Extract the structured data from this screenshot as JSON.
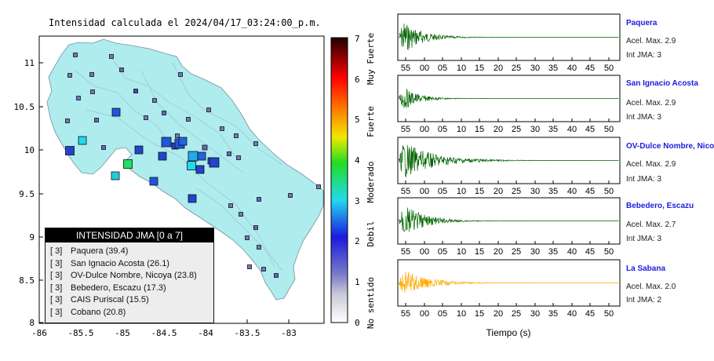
{
  "map": {
    "title": "Intensidad calculada el 2024/04/17_03:24:00_p.m.",
    "lon_ticks": [
      "-86",
      "-85.5",
      "-85",
      "-84.5",
      "-84",
      "-83.5",
      "-83"
    ],
    "lat_ticks": [
      "8",
      "8.5",
      "9",
      "9.5",
      "10",
      "10.5",
      "11"
    ],
    "colors": {
      "land": "#aeecee",
      "frame": "#000000"
    }
  },
  "legend": {
    "title": "INTENSIDAD JMA [0 a 7]",
    "items": [
      {
        "level": "[ 3]",
        "label": "Paquera (39.4)"
      },
      {
        "level": "[ 3]",
        "label": "San Ignacio Acosta (26.1)"
      },
      {
        "level": "[ 3]",
        "label": "OV-Dulce Nombre, Nicoya (23.8)"
      },
      {
        "level": "[ 3]",
        "label": "Bebedero, Escazu (17.3)"
      },
      {
        "level": "[ 3]",
        "label": "CAIS Puriscal (15.5)"
      },
      {
        "level": "[ 3]",
        "label": "Cobano (20.8)"
      }
    ]
  },
  "colorbar": {
    "ticks": [
      "0",
      "1",
      "2",
      "3",
      "4",
      "5",
      "6",
      "7"
    ],
    "categories": [
      "No sentido",
      "Debil",
      "Moderado",
      "Fuerte",
      "Muy Fuerte"
    ],
    "colors": [
      "#ffffff",
      "#9999cc",
      "#2222dd",
      "#22d9ee",
      "#22dd22",
      "#f0e800",
      "#ff7a00",
      "#ff0000",
      "#200000"
    ]
  },
  "chart_data": {
    "type": "line",
    "x_ticks": [
      "55",
      "00",
      "05",
      "10",
      "15",
      "20",
      "25",
      "30",
      "35",
      "40",
      "45",
      "50"
    ],
    "xlabel": "Tiempo (s)",
    "stations": [
      {
        "name": "Paquera",
        "acel": "Acel. Max. 2.9",
        "int": "Int JMA: 3",
        "color": "#006400",
        "amp": 1.0,
        "decay": 11
      },
      {
        "name": "San Ignacio Acosta",
        "acel": "Acel. Max. 2.9",
        "int": "Int JMA: 3",
        "color": "#006400",
        "amp": 0.75,
        "decay": 9
      },
      {
        "name": "OV-Dulce Nombre, Nicoya",
        "acel": "Acel. Max. 2.9",
        "int": "Int JMA: 3",
        "color": "#006400",
        "amp": 1.0,
        "decay": 18
      },
      {
        "name": "Bebedero, Escazu",
        "acel": "Acel. Max. 2.7",
        "int": "Int JMA: 3",
        "color": "#006400",
        "amp": 1.0,
        "decay": 12
      },
      {
        "name": "La Sabana",
        "acel": "Acel. Max. 2.0",
        "int": "Int JMA: 2",
        "color": "#ffaa00",
        "amp": 0.8,
        "decay": 14
      }
    ]
  }
}
